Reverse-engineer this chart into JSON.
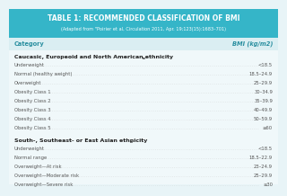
{
  "title": "TABLE 1: RECOMMENDED CLASSIFICATION OF BMI",
  "subtitle": "(Adapted from \"Poirier et al, Circulation 2011, Apr. 19;123(15):1683–701)",
  "header_category": "Category",
  "header_bmi": "BMI (kg/m2)",
  "section1_title": "Caucasic, Europeoid and North American ethnicity",
  "section1_sup": "a",
  "section1_rows": [
    [
      "Underweight",
      "<18.5"
    ],
    [
      "Normal (healthy weight)",
      "18.5–24.9"
    ],
    [
      "Overweight",
      "25–29.9"
    ],
    [
      "Obesity Class 1",
      "30–34.9"
    ],
    [
      "Obesity Class 2",
      "35–39.9"
    ],
    [
      "Obesity Class 3",
      "40–49.9"
    ],
    [
      "Obesity Class 4",
      "50–59.9"
    ],
    [
      "Obesity Class 5",
      "≥60"
    ]
  ],
  "section2_title": "South-, Southeast- or East Asian ethnicity",
  "section2_sup": "a",
  "section2_rows": [
    [
      "Underweight",
      "<18.5"
    ],
    [
      "Normal range",
      "18.5–22.9"
    ],
    [
      "Overweight—At risk",
      "23–24.9"
    ],
    [
      "Overweight—Moderate risk",
      "25–29.9"
    ],
    [
      "Overweight—Severe risk",
      "≥30"
    ]
  ],
  "header_bg": "#35b5c8",
  "col_header_bg": "#daeef2",
  "body_bg": "#e8f4f7",
  "row_bg": "#f0f8fa",
  "section_header_color": "#222222",
  "row_text_color": "#555555",
  "header_text_color": "#ffffff",
  "col_header_text_color": "#2a8fa0",
  "dot_color": "#bbbbbb"
}
